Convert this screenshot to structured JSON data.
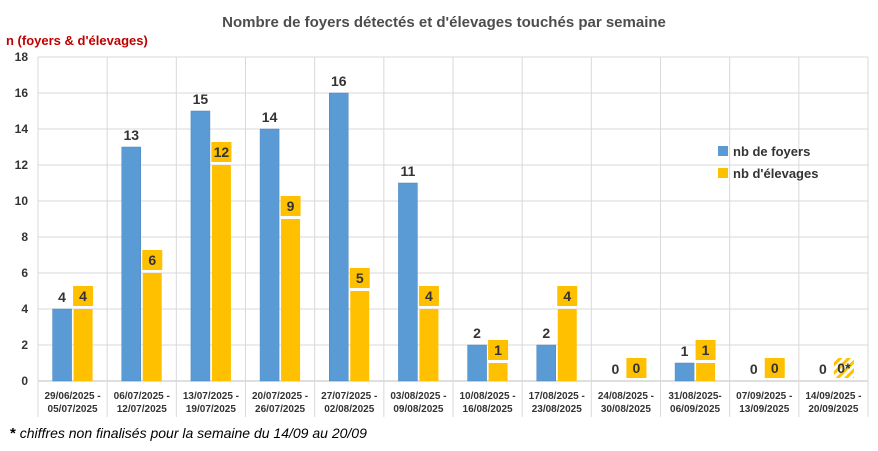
{
  "chart_data": {
    "type": "bar",
    "title": "Nombre de foyers détectés et d'élevages touchés par semaine",
    "ylabel": "n (foyers & d'élevages)",
    "ylim": [
      0,
      18
    ],
    "yticks": [
      0,
      2,
      4,
      6,
      8,
      10,
      12,
      14,
      16,
      18
    ],
    "grid": true,
    "legend_position": "right",
    "categories": [
      [
        "29/06/2025 -",
        "05/07/2025"
      ],
      [
        "06/07/2025 -",
        "12/07/2025"
      ],
      [
        "13/07/2025 -",
        "19/07/2025"
      ],
      [
        "20/07/2025 -",
        "26/07/2025"
      ],
      [
        "27/07/2025 -",
        "02/08/2025"
      ],
      [
        "03/08/2025 -",
        "09/08/2025"
      ],
      [
        "10/08/2025 -",
        "16/08/2025"
      ],
      [
        "17/08/2025 -",
        "23/08/2025"
      ],
      [
        "24/08/2025 -",
        "30/08/2025"
      ],
      [
        "31/08/2025-",
        "06/09/2025"
      ],
      [
        "07/09/2025 -",
        "13/09/2025"
      ],
      [
        "14/09/2025 -",
        "20/09/2025"
      ]
    ],
    "series": [
      {
        "name": "nb de foyers",
        "color": "#5b9bd5",
        "values": [
          4,
          13,
          15,
          14,
          16,
          11,
          2,
          2,
          0,
          1,
          0,
          0
        ],
        "labels": [
          "4",
          "13",
          "15",
          "14",
          "16",
          "11",
          "2",
          "2",
          "0",
          "1",
          "0",
          "0"
        ]
      },
      {
        "name": "nb  d'élevages",
        "color": "#ffc000",
        "values": [
          4,
          6,
          12,
          9,
          5,
          4,
          1,
          4,
          0,
          1,
          0,
          0
        ],
        "labels": [
          "4",
          "6",
          "12",
          "9",
          "5",
          "4",
          "1",
          "4",
          "0",
          "1",
          "0",
          "0*"
        ],
        "hatched_last": true
      }
    ]
  },
  "footnote": {
    "star": "*",
    "text": " chiffres non finalisés pour la semaine du 14/09 au 20/09"
  }
}
